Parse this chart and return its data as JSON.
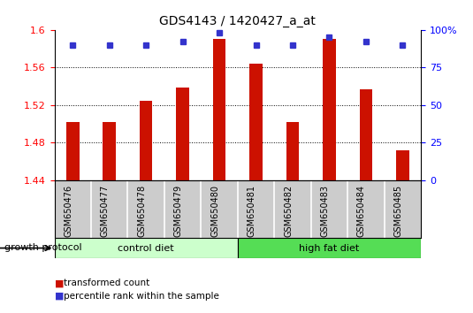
{
  "title": "GDS4143 / 1420427_a_at",
  "samples": [
    "GSM650476",
    "GSM650477",
    "GSM650478",
    "GSM650479",
    "GSM650480",
    "GSM650481",
    "GSM650482",
    "GSM650483",
    "GSM650484",
    "GSM650485"
  ],
  "bar_values": [
    1.502,
    1.502,
    1.524,
    1.538,
    1.59,
    1.564,
    1.502,
    1.59,
    1.537,
    1.472
  ],
  "percentile_values": [
    90,
    90,
    90,
    92,
    98,
    90,
    90,
    95,
    92,
    90
  ],
  "bar_color": "#cc1100",
  "percentile_color": "#3333cc",
  "ylim_left": [
    1.44,
    1.6
  ],
  "ylim_right": [
    0,
    100
  ],
  "yticks_left": [
    1.44,
    1.48,
    1.52,
    1.56,
    1.6
  ],
  "yticks_right": [
    0,
    25,
    50,
    75,
    100
  ],
  "ytick_labels_left": [
    "1.44",
    "1.48",
    "1.52",
    "1.56",
    "1.6"
  ],
  "ytick_labels_right": [
    "0",
    "25",
    "50",
    "75",
    "100%"
  ],
  "groups": [
    {
      "label": "control diet",
      "start": 0,
      "end": 4,
      "color": "#ccffcc"
    },
    {
      "label": "high fat diet",
      "start": 5,
      "end": 9,
      "color": "#55dd55"
    }
  ],
  "group_label": "growth protocol",
  "legend_items": [
    {
      "label": "transformed count",
      "color": "#cc1100"
    },
    {
      "label": "percentile rank within the sample",
      "color": "#3333cc"
    }
  ],
  "bar_width": 0.35,
  "xlabel_fontsize": 7,
  "ylabel_fontsize": 8,
  "title_fontsize": 10
}
